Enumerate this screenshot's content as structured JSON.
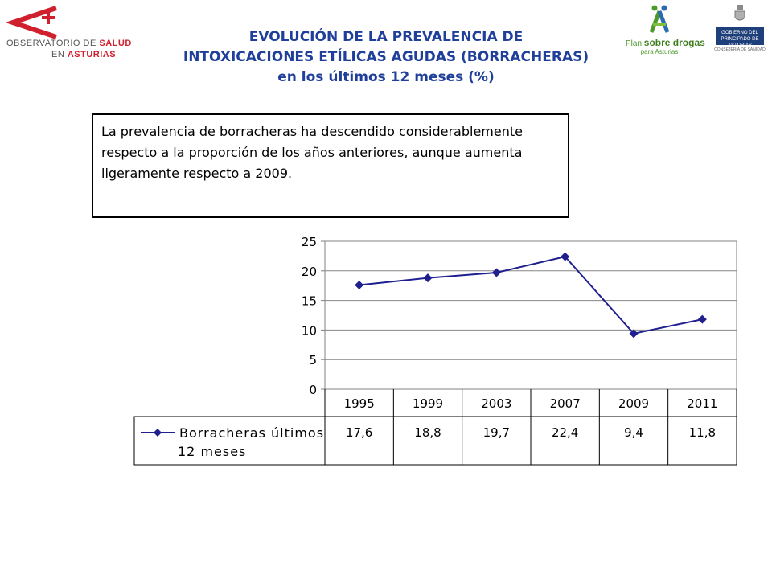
{
  "header": {
    "title_line1": "EVOLUCIÓN DE LA PREVALENCIA DE",
    "title_line2": "INTOXICACIONES ETÍLICAS AGUDAS (BORRACHERAS)",
    "title_line3": "en los últimos 12 meses (%)"
  },
  "logos": {
    "observatorio_line1_prefix": "OBSERVATORIO DE ",
    "observatorio_line1_bold": "SALUD",
    "observatorio_line2_prefix": "EN ",
    "observatorio_line2_bold": "ASTURIAS",
    "plan_prefix": "Plan ",
    "plan_bold": "sobre drogas",
    "plan_sub": "para Asturias",
    "gobierno": "GOBIERNO DEL PRINCIPADO DE ASTURIAS",
    "gobierno_sub": "CONSEJERÍA DE SANIDAD"
  },
  "note": "La prevalencia de borracheras ha descendido considerablemente respecto a la proporción de los años anteriores, aunque aumenta ligeramente respecto a 2009.",
  "colors": {
    "title": "#1f3f9a",
    "series": "#1f1f8f",
    "brand_red": "#d0202e",
    "plan_green": "#4c9a2a",
    "gobierno_blue": "#1f3f7a"
  },
  "chart_data": {
    "type": "line",
    "categories": [
      "1995",
      "1999",
      "2003",
      "2007",
      "2009",
      "2011"
    ],
    "series": [
      {
        "name": "Borracheras últimos 12 meses",
        "values": [
          17.6,
          18.8,
          19.7,
          22.4,
          9.4,
          11.8
        ]
      }
    ],
    "value_labels": [
      "17,6",
      "18,8",
      "19,7",
      "22,4",
      "9,4",
      "11,8"
    ],
    "yticks": [
      "0",
      "5",
      "10",
      "15",
      "20",
      "25"
    ],
    "ylim": [
      0,
      25
    ],
    "grid": true,
    "data_table": true,
    "marker": "diamond"
  }
}
